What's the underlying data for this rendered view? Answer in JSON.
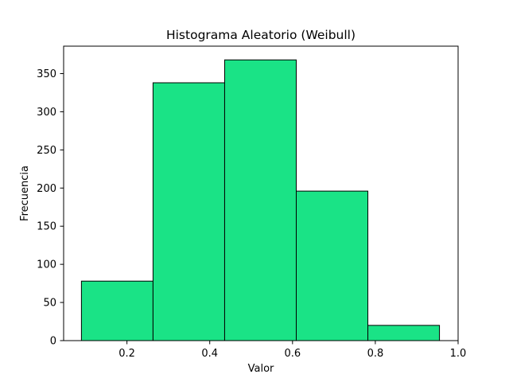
{
  "chart_data": {
    "type": "bar",
    "title": "Histograma Aleatorio (Weibull)",
    "xlabel": "Valor",
    "ylabel": "Frecuencia",
    "bin_edges": [
      0.09,
      0.263,
      0.436,
      0.609,
      0.782,
      0.955
    ],
    "values": [
      78,
      338,
      368,
      196,
      20
    ],
    "xlim": [
      0.047,
      1.0
    ],
    "ylim": [
      0,
      386
    ],
    "x_ticks": [
      0.2,
      0.4,
      0.6,
      0.8,
      1.0
    ],
    "x_tick_labels": [
      "0.2",
      "0.4",
      "0.6",
      "0.8",
      "1.0"
    ],
    "y_ticks": [
      0,
      50,
      100,
      150,
      200,
      250,
      300,
      350
    ],
    "y_tick_labels": [
      "0",
      "50",
      "100",
      "150",
      "200",
      "250",
      "300",
      "350"
    ],
    "grid": false,
    "bar_color": "#1ae386",
    "edge_color": "#000000"
  }
}
